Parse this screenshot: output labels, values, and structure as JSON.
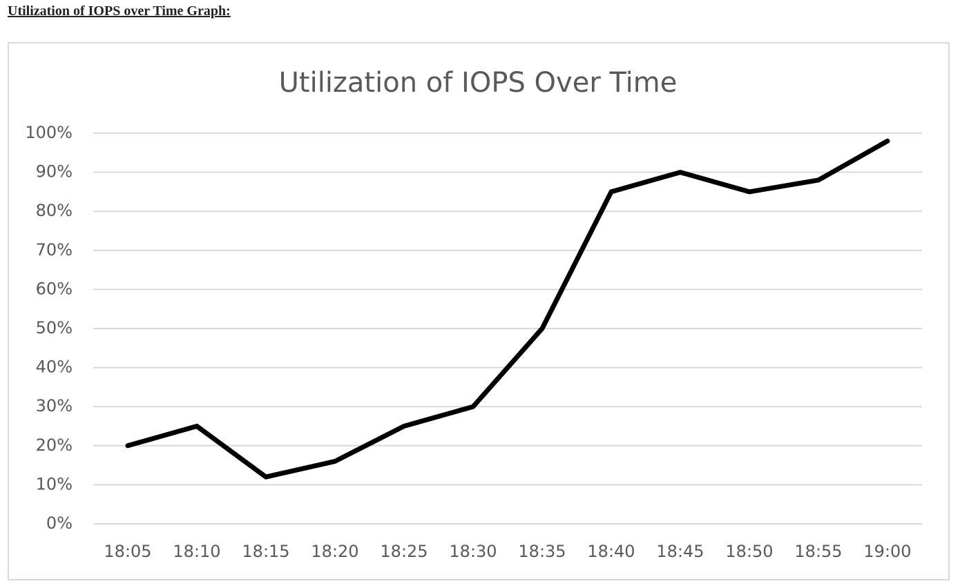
{
  "heading": "Utilization of IOPS over Time Graph:",
  "chart_data": {
    "type": "line",
    "title": "Utilization of IOPS Over Time",
    "categories": [
      "18:05",
      "18:10",
      "18:15",
      "18:20",
      "18:25",
      "18:30",
      "18:35",
      "18:40",
      "18:45",
      "18:50",
      "18:55",
      "19:00"
    ],
    "values": [
      20,
      25,
      12,
      16,
      25,
      30,
      50,
      85,
      90,
      85,
      88,
      98
    ],
    "color": "#000000",
    "ylim": [
      0,
      100
    ],
    "yticks": [
      {
        "value": 0,
        "label": "0%"
      },
      {
        "value": 10,
        "label": "10%"
      },
      {
        "value": 20,
        "label": "20%"
      },
      {
        "value": 30,
        "label": "30%"
      },
      {
        "value": 40,
        "label": "40%"
      },
      {
        "value": 50,
        "label": "50%"
      },
      {
        "value": 60,
        "label": "60%"
      },
      {
        "value": 70,
        "label": "70%"
      },
      {
        "value": 80,
        "label": "80%"
      },
      {
        "value": 90,
        "label": "90%"
      },
      {
        "value": 100,
        "label": "100%"
      }
    ],
    "grid": true
  }
}
